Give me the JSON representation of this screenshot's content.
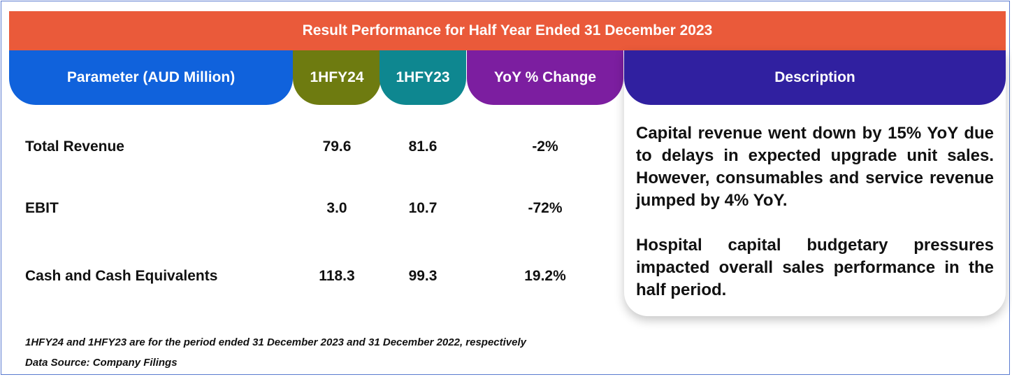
{
  "title": "Result Performance for Half Year Ended 31 December 2023",
  "headers": {
    "parameter": "Parameter (AUD Million)",
    "current": "1HFY24",
    "previous": "1HFY23",
    "yoy": "YoY % Change",
    "description": "Description"
  },
  "rows": [
    {
      "parameter": "Total Revenue",
      "current": "79.6",
      "previous": "81.6",
      "yoy": "-2%"
    },
    {
      "parameter": "EBIT",
      "current": "3.0",
      "previous": "10.7",
      "yoy": "-72%"
    },
    {
      "parameter": "Cash and Cash Equivalents",
      "current": "118.3",
      "previous": "99.3",
      "yoy": "19.2%"
    }
  ],
  "description": [
    "Capital revenue went down by 15% YoY due to delays in expected upgrade unit sales. However, consumables and service revenue jumped by 4% YoY.",
    "Hospital capital budgetary pressures impacted overall sales performance in the half period."
  ],
  "footnotes": [
    "1HFY24 and 1HFY23 are for the period ended 31 December  2023 and 31 December 2022, respectively",
    "Data Source: Company Filings"
  ],
  "colors": {
    "title_bar": "#ea5a3a",
    "parameter_header": "#1062dc",
    "current_header": "#6e7b10",
    "previous_header": "#0e8790",
    "yoy_header": "#7c1ea0",
    "description_header": "#3020a0"
  }
}
